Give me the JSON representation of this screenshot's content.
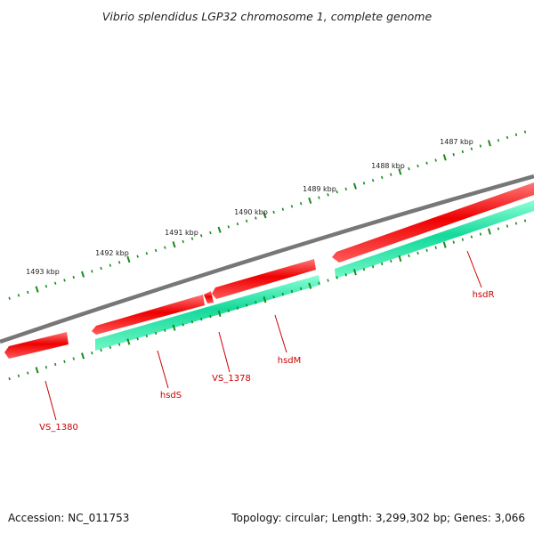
{
  "title": "Vibrio splendidus LGP32 chromosome 1, complete genome",
  "footer": {
    "accession": "Accession: NC_011753",
    "summary": "Topology: circular; Length: 3,299,302 bp; Genes: 3,066"
  },
  "colors": {
    "backbone": "#7a7a7a",
    "cds_forward": "#e60000",
    "gene_track": "#1de9a6",
    "ticks": "#1a8a1a",
    "label": "#cc0000"
  },
  "position_labels": [
    "1487 kbp",
    "1488 kbp",
    "1489 kbp",
    "1490 kbp",
    "1491 kbp",
    "1492 kbp",
    "1493 kbp"
  ],
  "genes": [
    {
      "id": "hsdR",
      "label": "hsdR"
    },
    {
      "id": "hsdM",
      "label": "hsdM"
    },
    {
      "id": "VS_1378",
      "label": "VS_1378"
    },
    {
      "id": "hsdS",
      "label": "hsdS"
    },
    {
      "id": "VS_1380",
      "label": "VS_1380"
    }
  ]
}
